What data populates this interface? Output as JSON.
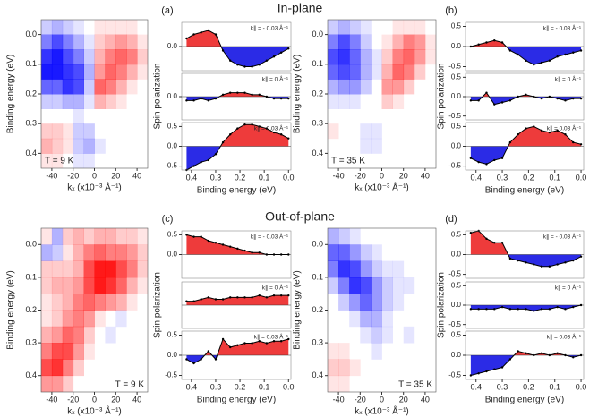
{
  "headings": [
    "In-plane",
    "Out-of-plane"
  ],
  "chart_data": [
    {
      "type": "heatmap",
      "xlabel": "kₓ (x10⁻³ Å⁻¹)",
      "ylabel": "Binding energy (eV)",
      "annotation": "T = 9 K",
      "x": [
        -45,
        -35,
        -25,
        -15,
        -5,
        5,
        15,
        25,
        35,
        45
      ],
      "y": [
        -0.025,
        0.025,
        0.075,
        0.125,
        0.175,
        0.225,
        0.275,
        0.325,
        0.375,
        0.425
      ],
      "xlim": [
        -50,
        50
      ],
      "ylim": [
        -0.05,
        0.45
      ],
      "xticks": [
        -40,
        -20,
        0,
        20,
        40
      ],
      "yticks": [
        {
          "value": 0,
          "label": "0.0"
        },
        0.1,
        0.2,
        0.3,
        0.4
      ],
      "pos_color": "#ff0000",
      "neg_color": "#0000ff",
      "z": [
        [
          -0.2,
          -0.3,
          -0.2,
          -0.1,
          0,
          0.1,
          0.1,
          0.1,
          0.1,
          0
        ],
        [
          -0.5,
          -0.7,
          -0.5,
          -0.3,
          -0.1,
          0.2,
          0.3,
          0.4,
          0.3,
          0.1
        ],
        [
          -0.8,
          -0.9,
          -0.7,
          -0.5,
          -0.2,
          0.3,
          0.5,
          0.6,
          0.5,
          0.2
        ],
        [
          -0.9,
          -0.9,
          -0.8,
          -0.7,
          -0.3,
          0.4,
          0.6,
          0.5,
          0.3,
          0.1
        ],
        [
          -0.6,
          -0.6,
          -0.8,
          -0.7,
          -0.2,
          0.6,
          0.5,
          0.3,
          0.1,
          0
        ],
        [
          -0.2,
          -0.2,
          -0.3,
          -0.3,
          -0.1,
          0.3,
          0.2,
          0.1,
          0,
          0
        ],
        [
          0,
          0,
          0,
          -0.1,
          0,
          0,
          0,
          0,
          0,
          0
        ],
        [
          0.2,
          0.2,
          0.1,
          -0.2,
          -0.2,
          0,
          0,
          0,
          0,
          0
        ],
        [
          0.3,
          0.2,
          0.1,
          -0.2,
          -0.3,
          -0.1,
          0,
          0,
          0,
          0
        ],
        [
          0.1,
          0.1,
          0,
          -0.1,
          -0.1,
          0,
          0,
          0,
          0,
          0
        ]
      ]
    },
    {
      "type": "polarization",
      "panel_label": "(a)",
      "xlabel": "Binding energy (eV)",
      "ylabel": "Spin polarization",
      "x": [
        0.42,
        0.39,
        0.36,
        0.33,
        0.3,
        0.27,
        0.24,
        0.21,
        0.18,
        0.15,
        0.12,
        0.09,
        0.06,
        0.03,
        0.0
      ],
      "xlim": [
        0.44,
        -0.01
      ],
      "xticks": [
        0.4,
        0.3,
        0.2,
        0.1,
        {
          "value": 0,
          "label": "0.0"
        }
      ],
      "pos_color": "#ee3b3b",
      "neg_color": "#2b2be6",
      "subplots": [
        {
          "label": "k∥ = - 0.03 Å⁻¹",
          "ylim": [
            -0.6,
            0.6
          ],
          "yticks": [
            {
              "value": 0,
              "label": "0.0"
            }
          ],
          "values": [
            0.2,
            0.3,
            0.35,
            0.4,
            0.3,
            -0.1,
            -0.35,
            -0.45,
            -0.5,
            -0.5,
            -0.45,
            -0.35,
            -0.25,
            -0.15,
            -0.05
          ]
        },
        {
          "label": "k∥ = 0 Å⁻¹",
          "ylim": [
            -0.6,
            0.6
          ],
          "yticks": [
            {
              "value": 0,
              "label": "0.0"
            }
          ],
          "values": [
            -0.1,
            -0.1,
            -0.05,
            -0.1,
            -0.05,
            0.05,
            0.1,
            0.1,
            0.1,
            0.05,
            0.05,
            0,
            -0.05,
            -0.05,
            -0.05
          ]
        },
        {
          "label": "k∥ = 0.03 Å⁻¹",
          "ylim": [
            -0.6,
            0.6
          ],
          "yticks": [
            0.5,
            {
              "value": 0,
              "label": "0.0"
            },
            -0.5
          ],
          "values": [
            -0.6,
            -0.5,
            -0.4,
            -0.35,
            -0.2,
            0.1,
            0.3,
            0.45,
            0.55,
            0.55,
            0.5,
            0.45,
            0.35,
            0.3,
            0.2
          ]
        }
      ]
    },
    {
      "type": "heatmap",
      "xlabel": "kₓ (x10⁻³ Å⁻¹)",
      "ylabel": "Binding energy (eV)",
      "annotation": "T = 35 K",
      "x": [
        -45,
        -35,
        -25,
        -15,
        -5,
        5,
        15,
        25,
        35,
        45
      ],
      "y": [
        -0.025,
        0.025,
        0.075,
        0.125,
        0.175,
        0.225,
        0.275,
        0.325,
        0.375,
        0.425
      ],
      "xlim": [
        -50,
        50
      ],
      "ylim": [
        -0.05,
        0.45
      ],
      "xticks": [
        -40,
        -20,
        0,
        20,
        40
      ],
      "yticks": [
        {
          "value": 0,
          "label": "0.0"
        },
        0.1,
        0.2,
        0.3,
        0.4
      ],
      "pos_color": "#ff0000",
      "neg_color": "#0000ff",
      "z": [
        [
          -0.2,
          -0.3,
          -0.2,
          -0.1,
          0,
          0,
          0.1,
          0.1,
          0.1,
          0
        ],
        [
          -0.5,
          -0.7,
          -0.5,
          -0.2,
          0,
          0.1,
          0.3,
          0.5,
          0.4,
          0.1
        ],
        [
          -0.7,
          -0.8,
          -0.6,
          -0.3,
          -0.1,
          0.2,
          0.5,
          0.6,
          0.4,
          0.1
        ],
        [
          -0.6,
          -0.7,
          -0.6,
          -0.3,
          -0.1,
          0.3,
          0.6,
          0.5,
          0.2,
          0
        ],
        [
          -0.3,
          -0.4,
          -0.4,
          -0.2,
          0,
          0.4,
          0.4,
          0.2,
          0,
          0
        ],
        [
          -0.1,
          -0.1,
          -0.1,
          0,
          0,
          0.2,
          0.1,
          0,
          0,
          0
        ],
        [
          0,
          0,
          0,
          0,
          0,
          0,
          0,
          0,
          0,
          0
        ],
        [
          0.1,
          0,
          0,
          -0.1,
          -0.1,
          0,
          0,
          0,
          0,
          0
        ],
        [
          0,
          0,
          0,
          -0.1,
          -0.1,
          0,
          0,
          0,
          0,
          0
        ],
        [
          0,
          0,
          0,
          0,
          0,
          0,
          0,
          0,
          0,
          0
        ]
      ]
    },
    {
      "type": "polarization",
      "panel_label": "(b)",
      "xlabel": "Binding energy (eV)",
      "ylabel": "Spin polarization",
      "x": [
        0.42,
        0.39,
        0.36,
        0.33,
        0.3,
        0.27,
        0.24,
        0.21,
        0.18,
        0.15,
        0.12,
        0.09,
        0.06,
        0.03,
        0.0
      ],
      "xlim": [
        0.44,
        -0.01
      ],
      "xticks": [
        0.4,
        0.3,
        0.2,
        0.1,
        {
          "value": 0,
          "label": "0.0"
        }
      ],
      "pos_color": "#ee3b3b",
      "neg_color": "#2b2be6",
      "subplots": [
        {
          "label": "k∥ = - 0.03 Å⁻¹",
          "ylim": [
            -0.6,
            0.6
          ],
          "yticks": [
            0.5,
            {
              "value": 0,
              "label": "0.0"
            },
            -0.5
          ],
          "values": [
            0,
            0.05,
            0.1,
            0.15,
            0.1,
            -0.1,
            -0.2,
            -0.35,
            -0.45,
            -0.4,
            -0.35,
            -0.25,
            -0.2,
            -0.15,
            -0.1
          ]
        },
        {
          "label": "k∥ = 0 Å⁻¹",
          "ylim": [
            -0.6,
            0.6
          ],
          "yticks": [
            0.5,
            {
              "value": 0,
              "label": "0.0"
            },
            -0.5
          ],
          "values": [
            -0.1,
            -0.1,
            0.1,
            -0.2,
            -0.15,
            -0.1,
            0,
            0.05,
            0,
            -0.05,
            0,
            -0.05,
            -0.1,
            -0.05,
            -0.05
          ]
        },
        {
          "label": "k∥ = 0.03 Å⁻¹",
          "ylim": [
            -0.6,
            0.6
          ],
          "yticks": [
            0.5,
            {
              "value": 0,
              "label": "0.0"
            },
            -0.5
          ],
          "values": [
            -0.3,
            -0.4,
            -0.45,
            -0.35,
            -0.3,
            0.1,
            0.3,
            0.45,
            0.5,
            0.4,
            0.35,
            0.4,
            0.3,
            0.1,
            0.05
          ]
        }
      ]
    },
    {
      "type": "heatmap",
      "xlabel": "kₓ (x10⁻³ Å⁻¹)",
      "ylabel": "Binding energy (eV)",
      "annotation": "T = 9 K",
      "x": [
        -45,
        -35,
        -25,
        -15,
        -5,
        5,
        15,
        25,
        35,
        45
      ],
      "y": [
        -0.025,
        0.025,
        0.075,
        0.125,
        0.175,
        0.225,
        0.275,
        0.325,
        0.375,
        0.425
      ],
      "xlim": [
        -50,
        50
      ],
      "ylim": [
        -0.05,
        0.45
      ],
      "xticks": [
        -40,
        -20,
        0,
        20,
        40
      ],
      "yticks": [
        {
          "value": 0,
          "label": "0.0"
        },
        0.1,
        0.2,
        0.3,
        0.4
      ],
      "pos_color": "#ff0000",
      "neg_color": "#0000ff",
      "z": [
        [
          0.1,
          -0.3,
          0.2,
          0.3,
          0.2,
          0.3,
          0.3,
          0.2,
          0.2,
          0.1
        ],
        [
          -0.3,
          -0.2,
          0.1,
          0.3,
          0.5,
          0.6,
          0.5,
          0.5,
          0.4,
          0.2
        ],
        [
          0.2,
          0.2,
          0.2,
          0.3,
          0.7,
          0.9,
          0.9,
          0.7,
          0.5,
          0.2
        ],
        [
          0.2,
          0.3,
          0.3,
          0.4,
          0.7,
          0.9,
          0.8,
          0.6,
          0.3,
          0.1
        ],
        [
          0.1,
          0.2,
          0.3,
          0.5,
          0.6,
          0.5,
          0.4,
          0.3,
          0.1,
          0
        ],
        [
          0.1,
          0.2,
          0.4,
          0.5,
          0.4,
          0.1,
          0,
          -0.1,
          0,
          0
        ],
        [
          0.3,
          0.4,
          0.6,
          0.5,
          0.2,
          0,
          -0.1,
          0,
          0,
          0
        ],
        [
          0.5,
          0.7,
          0.7,
          0.4,
          0.1,
          0,
          0,
          0,
          0,
          0
        ],
        [
          0.7,
          0.8,
          0.5,
          0.2,
          0,
          0,
          0,
          0,
          0,
          0
        ],
        [
          0.4,
          0.4,
          0.2,
          0,
          0,
          0,
          0,
          0,
          0,
          0
        ]
      ]
    },
    {
      "type": "polarization",
      "panel_label": "(c)",
      "xlabel": "Binding energy (eV)",
      "ylabel": "Spin polarization",
      "x": [
        0.42,
        0.39,
        0.36,
        0.33,
        0.3,
        0.27,
        0.24,
        0.21,
        0.18,
        0.15,
        0.12,
        0.09,
        0.06,
        0.03,
        0.0
      ],
      "xlim": [
        0.44,
        -0.01
      ],
      "xticks": [
        0.4,
        0.3,
        0.2,
        0.1,
        {
          "value": 0,
          "label": "0.0"
        }
      ],
      "pos_color": "#ee3b3b",
      "neg_color": "#2b2be6",
      "subplots": [
        {
          "label": "k∥ = - 0.03 Å⁻¹",
          "ylim": [
            -0.6,
            0.6
          ],
          "yticks": [
            0.5,
            {
              "value": 0,
              "label": "0.0"
            }
          ],
          "values": [
            0.5,
            0.45,
            0.45,
            0.35,
            0.3,
            0.25,
            0.2,
            0.15,
            0.1,
            0.05,
            0.05,
            0,
            0,
            0,
            0
          ]
        },
        {
          "label": "k∥ = 0 Å⁻¹",
          "ylim": [
            -0.6,
            0.6
          ],
          "yticks": [],
          "values": [
            0.1,
            0.1,
            0.15,
            0.2,
            0.15,
            0.15,
            0.2,
            0.2,
            0.2,
            0.2,
            0.25,
            0.2,
            0.25,
            0.25,
            0.25
          ]
        },
        {
          "label": "k∥ = 0.03 Å⁻¹",
          "ylim": [
            -0.6,
            0.6
          ],
          "yticks": [
            0.5,
            {
              "value": 0,
              "label": "0.0"
            },
            -0.5
          ],
          "values": [
            -0.1,
            -0.2,
            -0.1,
            0.1,
            -0.1,
            0.4,
            0.2,
            0.25,
            0.3,
            0.3,
            0.35,
            0.3,
            0.35,
            0.35,
            0.4
          ]
        }
      ]
    },
    {
      "type": "heatmap",
      "xlabel": "kₓ (x10⁻³ Å⁻¹)",
      "ylabel": "Binding energy (eV)",
      "annotation": "T = 35 K",
      "x": [
        -45,
        -35,
        -25,
        -15,
        -5,
        5,
        15,
        25,
        35,
        45
      ],
      "y": [
        -0.025,
        0.025,
        0.075,
        0.125,
        0.175,
        0.225,
        0.275,
        0.325,
        0.375,
        0.425
      ],
      "xlim": [
        -50,
        50
      ],
      "ylim": [
        -0.05,
        0.45
      ],
      "xticks": [
        -40,
        -20,
        0,
        20,
        40
      ],
      "yticks": [
        {
          "value": 0,
          "label": "0.0"
        },
        0.1,
        0.2,
        0.3,
        0.4
      ],
      "pos_color": "#ff0000",
      "neg_color": "#0000ff",
      "z": [
        [
          -0.3,
          -0.2,
          -0.1,
          0,
          0,
          0,
          0,
          0,
          0,
          0
        ],
        [
          -0.6,
          -0.6,
          -0.4,
          -0.2,
          -0.1,
          0,
          0,
          0,
          0,
          0
        ],
        [
          -0.5,
          -0.8,
          -0.7,
          -0.4,
          -0.2,
          -0.1,
          -0.1,
          0,
          0,
          0
        ],
        [
          -0.2,
          -0.5,
          -0.8,
          -0.7,
          -0.4,
          -0.2,
          -0.1,
          -0.1,
          0,
          0
        ],
        [
          0,
          -0.2,
          -0.4,
          -0.6,
          -0.4,
          -0.2,
          -0.1,
          0,
          0,
          0
        ],
        [
          0,
          0,
          -0.1,
          -0.3,
          -0.3,
          -0.1,
          0,
          0,
          0,
          0
        ],
        [
          0,
          0,
          0,
          -0.1,
          -0.2,
          -0.1,
          0,
          -0.1,
          0,
          0
        ],
        [
          0.1,
          0.1,
          0,
          0,
          -0.1,
          0,
          0,
          0,
          0,
          0
        ],
        [
          0.2,
          0.2,
          0.1,
          0,
          0,
          0,
          0,
          0,
          0,
          0
        ],
        [
          0.1,
          0.1,
          0,
          0,
          0,
          0,
          0,
          0,
          0,
          0
        ]
      ]
    },
    {
      "type": "polarization",
      "panel_label": "(d)",
      "xlabel": "Binding energy (eV)",
      "ylabel": "Spin polarization",
      "x": [
        0.42,
        0.39,
        0.36,
        0.33,
        0.3,
        0.27,
        0.24,
        0.21,
        0.18,
        0.15,
        0.12,
        0.09,
        0.06,
        0.03,
        0.0
      ],
      "xlim": [
        0.44,
        -0.01
      ],
      "xticks": [
        0.4,
        0.3,
        0.2,
        0.1,
        {
          "value": 0,
          "label": "0.0"
        }
      ],
      "pos_color": "#ee3b3b",
      "neg_color": "#2b2be6",
      "subplots": [
        {
          "label": "k∥ = - 0.03 Å⁻¹",
          "ylim": [
            -0.6,
            0.6
          ],
          "yticks": [
            0.5,
            {
              "value": 0,
              "label": "0.0"
            },
            -0.5
          ],
          "values": [
            0.55,
            0.6,
            0.4,
            0.3,
            0.3,
            -0.1,
            -0.15,
            -0.2,
            -0.25,
            -0.3,
            -0.3,
            -0.25,
            -0.2,
            -0.15,
            -0.05
          ]
        },
        {
          "label": "k∥ = 0 Å⁻¹",
          "ylim": [
            -0.6,
            0.6
          ],
          "yticks": [
            0.5,
            {
              "value": 0,
              "label": "0.0"
            },
            -0.5
          ],
          "values": [
            -0.1,
            -0.1,
            -0.1,
            -0.1,
            -0.05,
            -0.1,
            -0.1,
            -0.1,
            -0.15,
            -0.1,
            -0.1,
            -0.05,
            -0.1,
            -0.05,
            0
          ]
        },
        {
          "label": "k∥ = 0.03 Å⁻¹",
          "ylim": [
            -0.6,
            0.6
          ],
          "yticks": [
            0.5,
            {
              "value": 0,
              "label": "0.0"
            },
            -0.5
          ],
          "values": [
            -0.5,
            -0.45,
            -0.4,
            -0.35,
            -0.3,
            -0.1,
            0.1,
            0.05,
            0,
            0.05,
            0,
            0.05,
            0,
            -0.05,
            0
          ]
        }
      ]
    }
  ]
}
